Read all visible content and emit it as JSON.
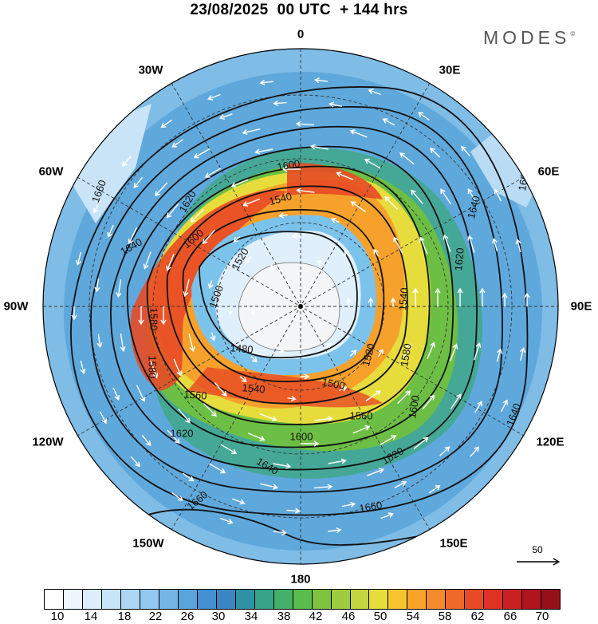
{
  "title": "23/08/2025  00 UTC  + 144 hrs",
  "brand": "MODES",
  "brand_mark": "©",
  "longitude_labels": {
    "lon_0": "0",
    "lon_30e": "30E",
    "lon_60e": "60E",
    "lon_90e": "90E",
    "lon_120e": "120E",
    "lon_150e": "150E",
    "lon_180": "180",
    "lon_150w": "150W",
    "lon_120w": "120W",
    "lon_90w": "90W",
    "lon_60w": "60W",
    "lon_30w": "30W"
  },
  "reference_vector": "50",
  "colorbar": {
    "ticks": [
      "10",
      "14",
      "18",
      "22",
      "26",
      "30",
      "34",
      "38",
      "42",
      "46",
      "50",
      "54",
      "58",
      "62",
      "66",
      "70"
    ],
    "colors": [
      "#ffffff",
      "#edf6fc",
      "#dbeefa",
      "#c6e5f8",
      "#acd6f4",
      "#92c8ef",
      "#74b5e6",
      "#5aa3dc",
      "#4390d2",
      "#3b86c4",
      "#2f92a6",
      "#37a488",
      "#45b06a",
      "#5bbc4e",
      "#7ec23f",
      "#9fcc3f",
      "#c3d640",
      "#e6dd3c",
      "#f6c52f",
      "#f8a42a",
      "#f58a2a",
      "#ef6a28",
      "#e84a26",
      "#df3126",
      "#cc1f24",
      "#b2141f",
      "#96101a"
    ]
  },
  "contour_labels": [
    {
      "text": "1480"
    },
    {
      "text": "1500"
    },
    {
      "text": "1500"
    },
    {
      "text": "1520"
    },
    {
      "text": "1520"
    },
    {
      "text": "1540"
    },
    {
      "text": "1540"
    },
    {
      "text": "1540"
    },
    {
      "text": "1560"
    },
    {
      "text": "1560"
    },
    {
      "text": "1580"
    },
    {
      "text": "1580"
    },
    {
      "text": "1580"
    },
    {
      "text": "1600"
    },
    {
      "text": "1600"
    },
    {
      "text": "1600"
    },
    {
      "text": "1600"
    },
    {
      "text": "1620"
    },
    {
      "text": "1620"
    },
    {
      "text": "1620"
    },
    {
      "text": "1620"
    },
    {
      "text": "1640"
    },
    {
      "text": "1640"
    },
    {
      "text": "1640"
    },
    {
      "text": "1640"
    },
    {
      "text": "1660"
    },
    {
      "text": "1660"
    },
    {
      "text": "1660"
    },
    {
      "text": "1660"
    }
  ]
}
